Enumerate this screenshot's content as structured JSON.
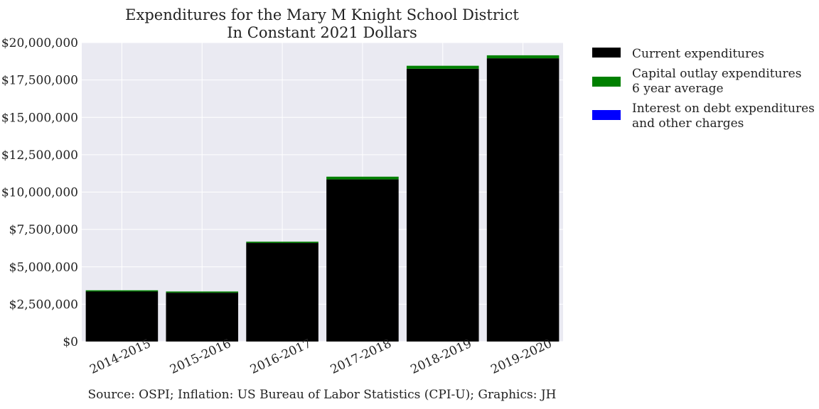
{
  "chart_data": {
    "type": "bar",
    "stacked": true,
    "title": [
      "Expenditures for the Mary M Knight School District",
      "In Constant 2021 Dollars"
    ],
    "xlabel": "",
    "ylabel": "",
    "categories": [
      "2014-2015",
      "2015-2016",
      "2016-2017",
      "2017-2018",
      "2018-2019",
      "2019-2020"
    ],
    "series": [
      {
        "name": "Current expenditures",
        "color": "#000000",
        "values": [
          3350000,
          3270000,
          6600000,
          10850000,
          18250000,
          18950000
        ]
      },
      {
        "name": "Capital outlay expenditures\n6 year average",
        "color": "#008000",
        "values": [
          80000,
          80000,
          80000,
          180000,
          200000,
          200000
        ]
      },
      {
        "name": "Interest on debt expenditures\nand other charges",
        "color": "#0000ff",
        "values": [
          0,
          0,
          0,
          0,
          0,
          0
        ]
      }
    ],
    "ylim": [
      0,
      20000000
    ],
    "yticks": [
      0,
      2500000,
      5000000,
      7500000,
      10000000,
      12500000,
      15000000,
      17500000,
      20000000
    ],
    "ytick_labels": [
      "$0",
      "$2,500,000",
      "$5,000,000",
      "$7,500,000",
      "$10,000,000",
      "$12,500,000",
      "$15,000,000",
      "$17,500,000",
      "$20,000,000"
    ],
    "grid": true,
    "legend_position": "outside-right-top",
    "source": "Source: OSPI; Inflation: US Bureau of Labor Statistics (CPI-U); Graphics: JH",
    "plot_background": "#eaeaf2",
    "grid_color": "#ffffff"
  }
}
